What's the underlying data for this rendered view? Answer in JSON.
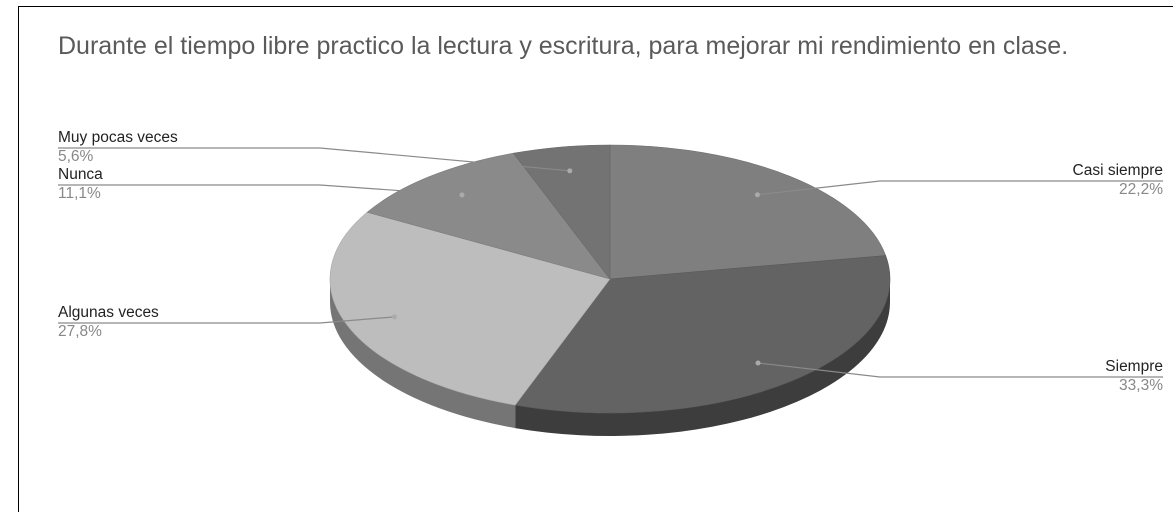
{
  "chart_data": {
    "type": "pie3d",
    "title": "Durante el tiempo libre practico la lectura y escritura, para mejorar mi rendimiento en clase.",
    "categories": [
      "Casi siempre",
      "Siempre",
      "Algunas veces",
      "Nunca",
      "Muy pocas veces"
    ],
    "values": [
      22.2,
      33.3,
      27.8,
      11.1,
      5.6
    ],
    "value_labels": [
      "22,2%",
      "33,3%",
      "27,8%",
      "11,1%",
      "5,6%"
    ],
    "colors": [
      "#7f7f7f",
      "#636363",
      "#bdbdbd",
      "#8a8a8a",
      "#737373"
    ]
  }
}
